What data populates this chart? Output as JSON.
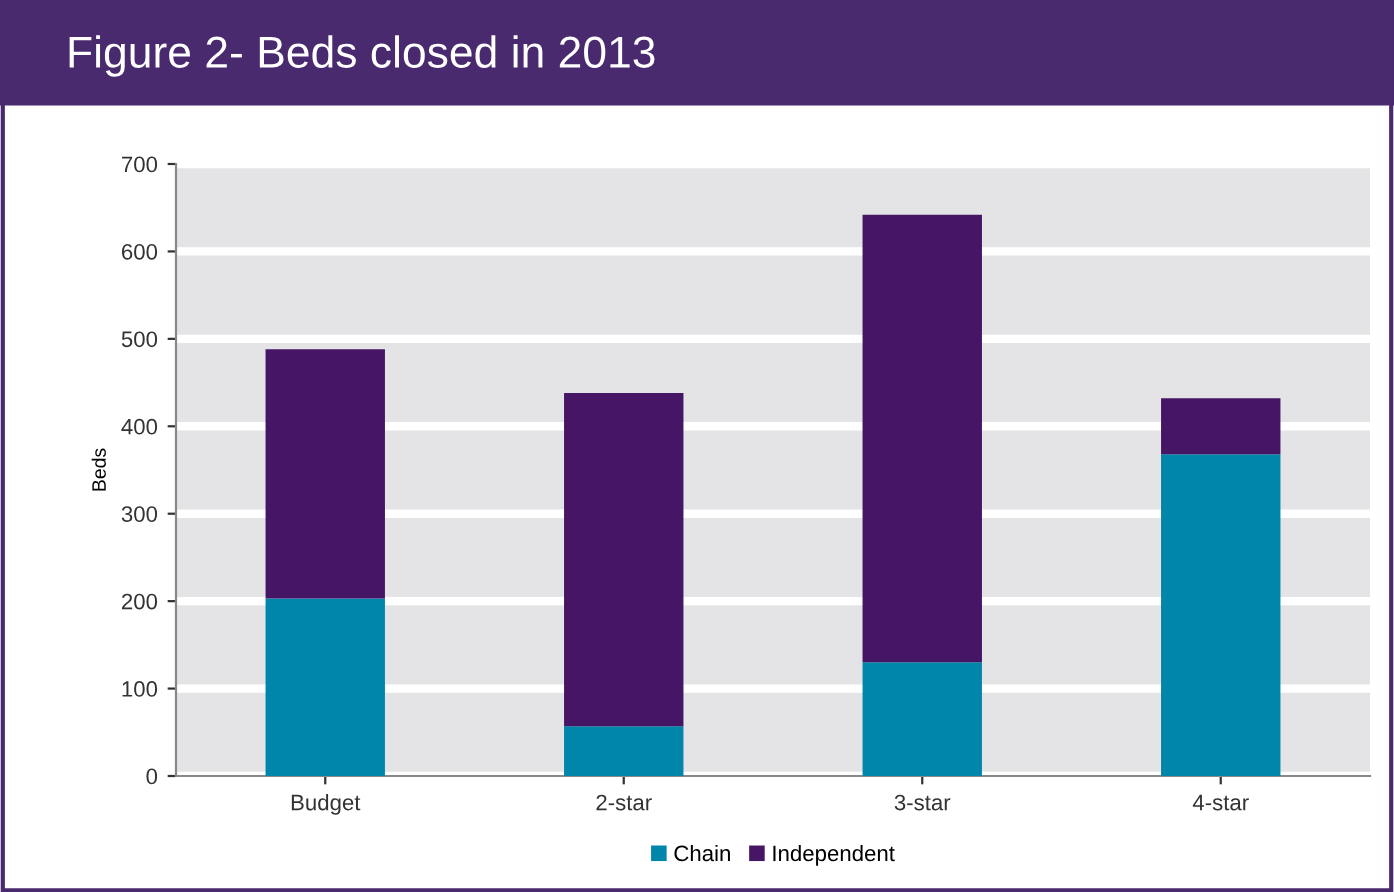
{
  "chart_data": {
    "type": "bar",
    "stacked": true,
    "title": "Figure 2- Beds closed in 2013",
    "ylabel": "Beds",
    "categories": [
      "Budget",
      "2-star",
      "3-star",
      "4-star"
    ],
    "series": [
      {
        "name": "Chain",
        "color": "#0086ab",
        "values": [
          203,
          57,
          130,
          368
        ]
      },
      {
        "name": "Independent",
        "color": "#461565",
        "values": [
          285,
          381,
          512,
          64
        ]
      }
    ],
    "ylim": [
      0,
      700
    ],
    "yticks": [
      0,
      100,
      200,
      300,
      400,
      500,
      600,
      700
    ],
    "grid": "y",
    "legend": "bottom"
  }
}
